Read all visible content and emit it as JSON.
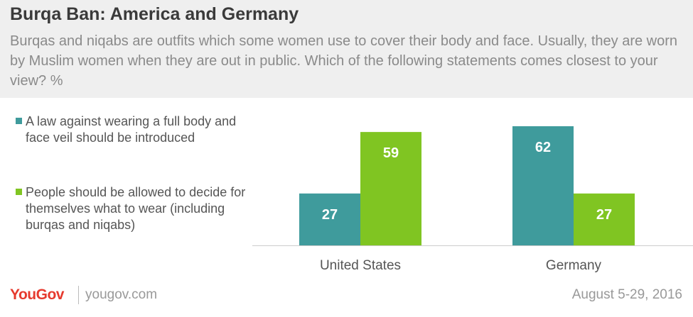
{
  "header": {
    "title": "Burqa Ban: America and Germany",
    "subtitle": "Burqas and niqabs are outfits which some women use to cover their body and face. Usually, they are worn by Muslim women when they are out in public. Which of the following statements comes closest to your view? %"
  },
  "colors": {
    "teal": "#3f9b9c",
    "green": "#80c522",
    "header_bg": "#efefef",
    "brand_red": "#e63a2e"
  },
  "chart_data": {
    "type": "bar",
    "categories": [
      "United States",
      "Germany"
    ],
    "series": [
      {
        "name": "A law against wearing a full body and face veil should be introduced",
        "color": "#3f9b9c",
        "values": [
          27,
          62
        ]
      },
      {
        "name": "People should be allowed to decide for themselves what to wear (including burqas and niqabs)",
        "color": "#80c522",
        "values": [
          59,
          27
        ]
      }
    ],
    "ylim": [
      0,
      62
    ],
    "grid": false,
    "legend_position": "left"
  },
  "footer": {
    "brand": "YouGov",
    "site": "yougov.com",
    "date": "August 5-29, 2016"
  }
}
